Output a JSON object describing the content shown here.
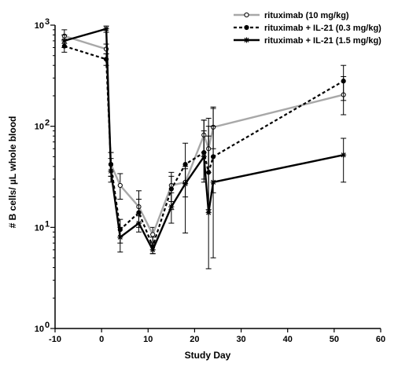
{
  "chart_data": {
    "type": "line",
    "xlabel": "Study Day",
    "ylabel": "# B cells/ µL whole blood",
    "xlim": [
      -10,
      60
    ],
    "ylim": [
      1,
      1000
    ],
    "yscale": "log",
    "x_ticks": [
      "-10",
      "0",
      "10",
      "20",
      "30",
      "40",
      "50",
      "60"
    ],
    "y_ticks": [
      {
        "base": "10",
        "exp": "0",
        "value": 1
      },
      {
        "base": "10",
        "exp": "1",
        "value": 10
      },
      {
        "base": "10",
        "exp": "2",
        "value": 100
      },
      {
        "base": "10",
        "exp": "3",
        "value": 1000
      }
    ],
    "grid": false,
    "legend_position": "top-right",
    "series": [
      {
        "name": "rituximab (10 mg/kg)",
        "color": "#a8a8a8",
        "line_style": "solid",
        "marker": "open-circle",
        "points": [
          {
            "x": -8,
            "y": 780,
            "lo": 660,
            "hi": 900
          },
          {
            "x": 1,
            "y": 580,
            "lo": 520,
            "hi": 650
          },
          {
            "x": 2,
            "y": 42,
            "lo": 32,
            "hi": 55
          },
          {
            "x": 4,
            "y": 26,
            "lo": 19,
            "hi": 34
          },
          {
            "x": 8,
            "y": 16,
            "lo": 11,
            "hi": 23
          },
          {
            "x": 11,
            "y": 8.5,
            "lo": 7,
            "hi": 10
          },
          {
            "x": 15,
            "y": 26,
            "lo": 18,
            "hi": 35
          },
          {
            "x": 18,
            "y": 28,
            "lo": 20,
            "hi": 38
          },
          {
            "x": 22,
            "y": 82,
            "lo": 55,
            "hi": 115
          },
          {
            "x": 23,
            "y": 60,
            "lo": 35,
            "hi": 100
          },
          {
            "x": 24,
            "y": 98,
            "lo": 60,
            "hi": 155
          },
          {
            "x": 52,
            "y": 205,
            "lo": 130,
            "hi": 310
          }
        ]
      },
      {
        "name": "rituximab + IL-21 (0.3 mg/kg)",
        "color": "#000000",
        "line_style": "dashed",
        "marker": "filled-circle",
        "points": [
          {
            "x": -8,
            "y": 620,
            "lo": 540,
            "hi": 720
          },
          {
            "x": 1,
            "y": 460,
            "lo": 400,
            "hi": 520
          },
          {
            "x": 2,
            "y": 42,
            "lo": 32,
            "hi": 55
          },
          {
            "x": 4,
            "y": 9.5,
            "lo": 7,
            "hi": 12
          },
          {
            "x": 8,
            "y": 14,
            "lo": 10,
            "hi": 19
          },
          {
            "x": 11,
            "y": 6.5,
            "lo": 5.5,
            "hi": 8
          },
          {
            "x": 15,
            "y": 24,
            "lo": 15,
            "hi": 32
          },
          {
            "x": 18,
            "y": 42,
            "lo": 27,
            "hi": 68
          },
          {
            "x": 22,
            "y": 55,
            "lo": 30,
            "hi": 115
          },
          {
            "x": 23,
            "y": 35,
            "lo": 15,
            "hi": 80
          },
          {
            "x": 24,
            "y": 50,
            "lo": 22,
            "hi": 100
          },
          {
            "x": 52,
            "y": 280,
            "lo": 180,
            "hi": 400
          }
        ]
      },
      {
        "name": "rituximab + IL-21 (1.5 mg/kg)",
        "color": "#000000",
        "line_style": "solid",
        "marker": "star",
        "points": [
          {
            "x": -8,
            "y": 700,
            "lo": 600,
            "hi": 800
          },
          {
            "x": 1,
            "y": 920,
            "lo": 850,
            "hi": 980
          },
          {
            "x": 2,
            "y": 36,
            "lo": 28,
            "hi": 48
          },
          {
            "x": 4,
            "y": 8,
            "lo": 5.7,
            "hi": 10
          },
          {
            "x": 8,
            "y": 11,
            "lo": 9,
            "hi": 13
          },
          {
            "x": 11,
            "y": 6,
            "lo": 5.5,
            "hi": 7
          },
          {
            "x": 15,
            "y": 16,
            "lo": 11,
            "hi": 22
          },
          {
            "x": 18,
            "y": 27,
            "lo": 8.8,
            "hi": 40
          },
          {
            "x": 22,
            "y": 50,
            "lo": 28,
            "hi": 90
          },
          {
            "x": 23,
            "y": 14,
            "lo": 3.9,
            "hi": 120
          },
          {
            "x": 24,
            "y": 28,
            "lo": 5,
            "hi": 150
          },
          {
            "x": 52,
            "y": 52,
            "lo": 28,
            "hi": 76
          }
        ]
      }
    ]
  }
}
